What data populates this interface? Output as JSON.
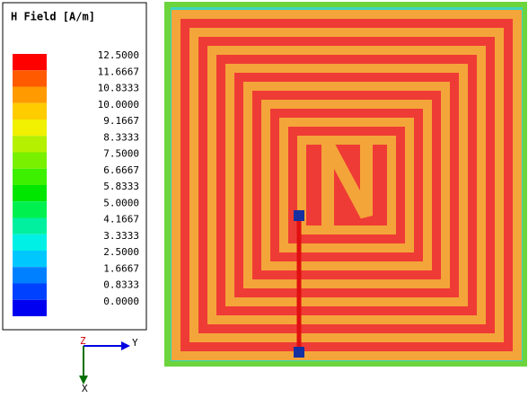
{
  "legend": {
    "title": "H Field [A/m]",
    "levels": [
      {
        "label": "12.5000",
        "color": "#ff0000"
      },
      {
        "label": "11.6667",
        "color": "#ff5a00"
      },
      {
        "label": "10.8333",
        "color": "#ff9a00"
      },
      {
        "label": "10.0000",
        "color": "#ffcc00"
      },
      {
        "label": "9.1667",
        "color": "#f0f000"
      },
      {
        "label": "8.3333",
        "color": "#b4f000"
      },
      {
        "label": "7.5000",
        "color": "#78f000"
      },
      {
        "label": "6.6667",
        "color": "#3cf000"
      },
      {
        "label": "5.8333",
        "color": "#00e600"
      },
      {
        "label": "5.0000",
        "color": "#00f050"
      },
      {
        "label": "4.1667",
        "color": "#00f0a0"
      },
      {
        "label": "3.3333",
        "color": "#00f0e6"
      },
      {
        "label": "2.5000",
        "color": "#00c8ff"
      },
      {
        "label": "1.6667",
        "color": "#0080ff"
      },
      {
        "label": "0.8333",
        "color": "#0040ff"
      },
      {
        "label": "0.0000",
        "color": null
      }
    ]
  },
  "axes": {
    "z": "Z",
    "y": "Y",
    "x": "X"
  }
}
